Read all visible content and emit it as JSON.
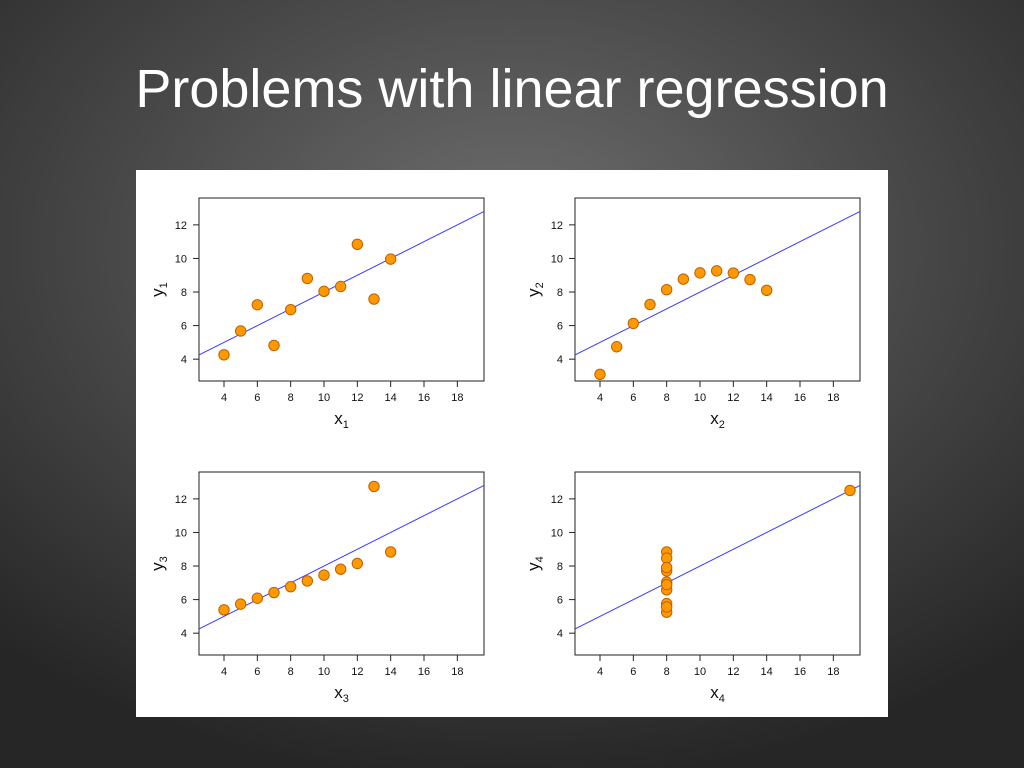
{
  "slide": {
    "title": "Problems with linear regression"
  },
  "chart_data": [
    {
      "type": "scatter",
      "xlabel": "x",
      "xlabel_sub": "1",
      "ylabel": "y",
      "ylabel_sub": "1",
      "xlim": [
        2.5,
        19.6
      ],
      "ylim": [
        2.7,
        13.6
      ],
      "xticks": [
        4,
        6,
        8,
        10,
        12,
        14,
        16,
        18
      ],
      "yticks": [
        4,
        6,
        8,
        10,
        12
      ],
      "x": [
        4,
        5,
        6,
        7,
        8,
        9,
        10,
        11,
        12,
        13,
        14
      ],
      "y": [
        4.26,
        5.68,
        7.24,
        4.82,
        6.95,
        8.81,
        8.04,
        8.33,
        10.84,
        7.58,
        9.96
      ],
      "fit": {
        "intercept": 3.0,
        "slope": 0.5
      },
      "marker_color": "#ff9900",
      "marker_edge": "#c06000",
      "line_color": "#3a3aff"
    },
    {
      "type": "scatter",
      "xlabel": "x",
      "xlabel_sub": "2",
      "ylabel": "y",
      "ylabel_sub": "2",
      "xlim": [
        2.5,
        19.6
      ],
      "ylim": [
        2.7,
        13.6
      ],
      "xticks": [
        4,
        6,
        8,
        10,
        12,
        14,
        16,
        18
      ],
      "yticks": [
        4,
        6,
        8,
        10,
        12
      ],
      "x": [
        4,
        5,
        6,
        7,
        8,
        9,
        10,
        11,
        12,
        13,
        14
      ],
      "y": [
        3.1,
        4.74,
        6.13,
        7.26,
        8.14,
        8.77,
        9.14,
        9.26,
        9.13,
        8.74,
        8.1
      ],
      "fit": {
        "intercept": 3.0,
        "slope": 0.5
      },
      "marker_color": "#ff9900",
      "marker_edge": "#c06000",
      "line_color": "#3a3aff"
    },
    {
      "type": "scatter",
      "xlabel": "x",
      "xlabel_sub": "3",
      "ylabel": "y",
      "ylabel_sub": "3",
      "xlim": [
        2.5,
        19.6
      ],
      "ylim": [
        2.7,
        13.6
      ],
      "xticks": [
        4,
        6,
        8,
        10,
        12,
        14,
        16,
        18
      ],
      "yticks": [
        4,
        6,
        8,
        10,
        12
      ],
      "x": [
        4,
        5,
        6,
        7,
        8,
        9,
        10,
        11,
        12,
        13,
        14
      ],
      "y": [
        5.39,
        5.73,
        6.08,
        6.42,
        6.77,
        7.11,
        7.46,
        7.81,
        8.15,
        12.74,
        8.84
      ],
      "fit": {
        "intercept": 3.0,
        "slope": 0.5
      },
      "marker_color": "#ff9900",
      "marker_edge": "#c06000",
      "line_color": "#3a3aff"
    },
    {
      "type": "scatter",
      "xlabel": "x",
      "xlabel_sub": "4",
      "ylabel": "y",
      "ylabel_sub": "4",
      "xlim": [
        2.5,
        19.6
      ],
      "ylim": [
        2.7,
        13.6
      ],
      "xticks": [
        4,
        6,
        8,
        10,
        12,
        14,
        16,
        18
      ],
      "yticks": [
        4,
        6,
        8,
        10,
        12
      ],
      "x": [
        8,
        8,
        8,
        8,
        8,
        8,
        8,
        19,
        8,
        8,
        8
      ],
      "y": [
        6.58,
        5.76,
        7.71,
        8.84,
        8.47,
        7.04,
        5.25,
        12.5,
        5.56,
        7.91,
        6.89
      ],
      "fit": {
        "intercept": 3.0,
        "slope": 0.5
      },
      "marker_color": "#ff9900",
      "marker_edge": "#c06000",
      "line_color": "#3a3aff"
    }
  ]
}
